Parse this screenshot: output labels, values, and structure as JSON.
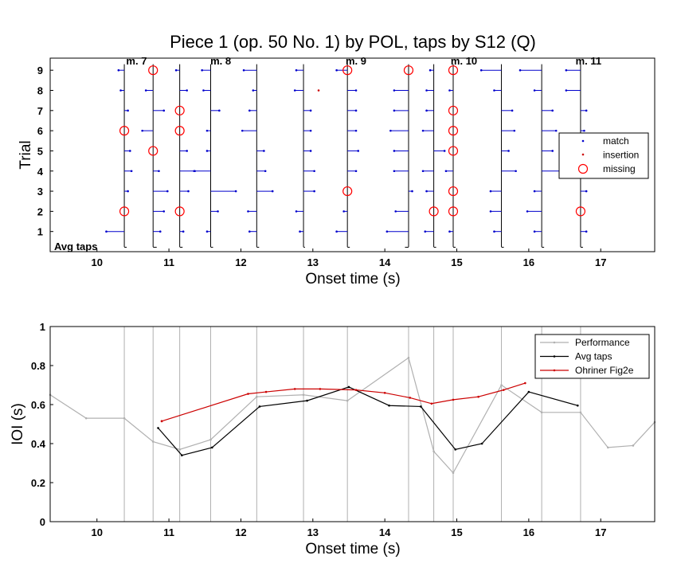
{
  "figure_title": "Piece 1 (op. 50 No. 1) by POL, taps by S12 (Q)",
  "colors": {
    "match": "#0000cc",
    "insertion": "#cc0000",
    "missing": "#ff0000",
    "performance": "#b0b0b0",
    "avg": "#000000",
    "ohriner": "#cc0000",
    "grid": "#b0b0b0",
    "axis": "#000000"
  },
  "chart_data": [
    {
      "type": "scatter",
      "title": "Piece 1 (op. 50 No. 1) by POL, taps by S12 (Q)",
      "xlabel": "Onset time (s)",
      "ylabel": "Trial",
      "xlim": [
        9.35,
        17.75
      ],
      "ylim": [
        0,
        9.6
      ],
      "xticks": [
        10,
        11,
        12,
        13,
        14,
        15,
        16,
        17
      ],
      "yticks": [
        1,
        2,
        3,
        4,
        5,
        6,
        7,
        8,
        9
      ],
      "y_extra_label": "Avg taps",
      "grid": false,
      "legend_position": "right",
      "legend": [
        "match",
        "insertion",
        "missing"
      ],
      "beat_lines": [
        10.38,
        10.78,
        11.15,
        11.58,
        12.22,
        12.87,
        13.48,
        14.33,
        14.68,
        14.95,
        15.62,
        16.18,
        16.72
      ],
      "measure_labels": [
        {
          "text": "m. 7",
          "x": 10.55
        },
        {
          "text": "m. 8",
          "x": 11.72
        },
        {
          "text": "m. 9",
          "x": 13.6
        },
        {
          "text": "m. 10",
          "x": 15.1
        },
        {
          "text": "m. 11",
          "x": 16.83
        }
      ],
      "missing_points": [
        {
          "x": 10.78,
          "y": 9
        },
        {
          "x": 13.48,
          "y": 9
        },
        {
          "x": 14.33,
          "y": 9
        },
        {
          "x": 14.95,
          "y": 9
        },
        {
          "x": 11.15,
          "y": 7
        },
        {
          "x": 14.95,
          "y": 7
        },
        {
          "x": 10.38,
          "y": 6
        },
        {
          "x": 11.15,
          "y": 6
        },
        {
          "x": 14.95,
          "y": 6
        },
        {
          "x": 10.78,
          "y": 5
        },
        {
          "x": 14.95,
          "y": 5
        },
        {
          "x": 13.48,
          "y": 3
        },
        {
          "x": 14.95,
          "y": 3
        },
        {
          "x": 10.38,
          "y": 2
        },
        {
          "x": 11.15,
          "y": 2
        },
        {
          "x": 14.68,
          "y": 2
        },
        {
          "x": 14.95,
          "y": 2
        },
        {
          "x": 16.72,
          "y": 2
        }
      ],
      "insertion_points": [
        {
          "x": 13.08,
          "y": 8
        }
      ],
      "match_offsets": [
        {
          "trial": 9,
          "values": [
            -0.08,
            null,
            -0.05,
            -0.12,
            -0.18,
            -0.1,
            -0.15,
            null,
            -0.05,
            null,
            -0.28,
            -0.3,
            -0.2
          ]
        },
        {
          "trial": 8,
          "values": [
            -0.05,
            -0.1,
            0.1,
            -0.1,
            -0.05,
            -0.12,
            0.12,
            -0.2,
            -0.1,
            -0.05,
            -0.1,
            -0.1,
            -0.2
          ]
        },
        {
          "trial": 7,
          "values": [
            0.05,
            0.15,
            null,
            0.12,
            -0.1,
            0.1,
            0.12,
            -0.2,
            -0.1,
            null,
            0.15,
            0.15,
            0.08
          ]
        },
        {
          "trial": 6,
          "values": [
            null,
            -0.15,
            null,
            -0.05,
            -0.2,
            0.1,
            0.12,
            -0.25,
            -0.15,
            null,
            0.18,
            0.2,
            0.05
          ]
        },
        {
          "trial": 5,
          "values": [
            0.08,
            null,
            0.1,
            -0.05,
            0.1,
            0.1,
            0.15,
            -0.2,
            0.15,
            null,
            0.1,
            0.15,
            0.05
          ]
        },
        {
          "trial": 4,
          "values": [
            0.1,
            0.08,
            0.2,
            -0.22,
            0.12,
            0.15,
            0.12,
            -0.2,
            -0.15,
            -0.1,
            0.2,
            0.25,
            -0.25
          ]
        },
        {
          "trial": 3,
          "values": [
            0.05,
            0.2,
            0.12,
            0.35,
            0.22,
            0.15,
            null,
            0.05,
            -0.1,
            null,
            -0.15,
            -0.1,
            0.08
          ]
        },
        {
          "trial": 2,
          "values": [
            null,
            0.15,
            null,
            0.1,
            -0.12,
            -0.1,
            -0.05,
            -0.18,
            null,
            null,
            -0.15,
            -0.2,
            null
          ]
        },
        {
          "trial": 1,
          "values": [
            -0.25,
            0.1,
            0.05,
            -0.05,
            -0.1,
            -0.05,
            -0.15,
            -0.3,
            -0.12,
            -0.05,
            -0.1,
            -0.1,
            0.08
          ]
        }
      ],
      "avg_taps": [
        0.0,
        0.05,
        0.04,
        0.0,
        0.0,
        0.02,
        0.0,
        -0.05,
        0.0,
        0.0,
        0.0,
        0.0,
        0.0
      ]
    },
    {
      "type": "line",
      "xlabel": "Onset time (s)",
      "ylabel": "IOI (s)",
      "xlim": [
        9.35,
        17.75
      ],
      "ylim": [
        0,
        1
      ],
      "xticks": [
        10,
        11,
        12,
        13,
        14,
        15,
        16,
        17
      ],
      "yticks": [
        0,
        0.2,
        0.4,
        0.6,
        0.8,
        1
      ],
      "ytick_labels": [
        "0",
        "0.2",
        "0.4",
        "0.6",
        "0.8",
        "1"
      ],
      "grid": false,
      "legend_position": "top-right",
      "beat_lines": [
        10.38,
        10.78,
        11.15,
        11.58,
        12.22,
        12.87,
        13.48,
        14.33,
        14.68,
        14.95,
        15.62,
        16.18,
        16.72
      ],
      "series": [
        {
          "name": "Performance",
          "x": [
            9.35,
            9.85,
            10.38,
            10.78,
            11.15,
            11.58,
            12.22,
            12.87,
            13.48,
            14.33,
            14.68,
            14.95,
            15.62,
            16.18,
            16.72,
            17.1,
            17.45,
            17.75
          ],
          "y": [
            0.65,
            0.53,
            0.53,
            0.41,
            0.37,
            0.42,
            0.64,
            0.65,
            0.62,
            0.84,
            0.36,
            0.25,
            0.7,
            0.56,
            0.56,
            0.38,
            0.39,
            0.51
          ]
        },
        {
          "name": "Avg taps",
          "x": [
            10.85,
            11.18,
            11.6,
            12.26,
            12.92,
            13.5,
            14.06,
            14.5,
            14.98,
            15.35,
            16.0,
            16.68
          ],
          "y": [
            0.48,
            0.34,
            0.38,
            0.59,
            0.62,
            0.69,
            0.595,
            0.59,
            0.37,
            0.4,
            0.665,
            0.595
          ]
        },
        {
          "name": "Ohriner Fig2e",
          "x": [
            10.9,
            12.1,
            12.35,
            12.75,
            13.1,
            13.6,
            14.0,
            14.35,
            14.65,
            14.95,
            15.3,
            15.65,
            15.95
          ],
          "y": [
            0.515,
            0.655,
            0.665,
            0.68,
            0.68,
            0.675,
            0.66,
            0.635,
            0.605,
            0.625,
            0.64,
            0.675,
            0.71
          ]
        }
      ]
    }
  ]
}
